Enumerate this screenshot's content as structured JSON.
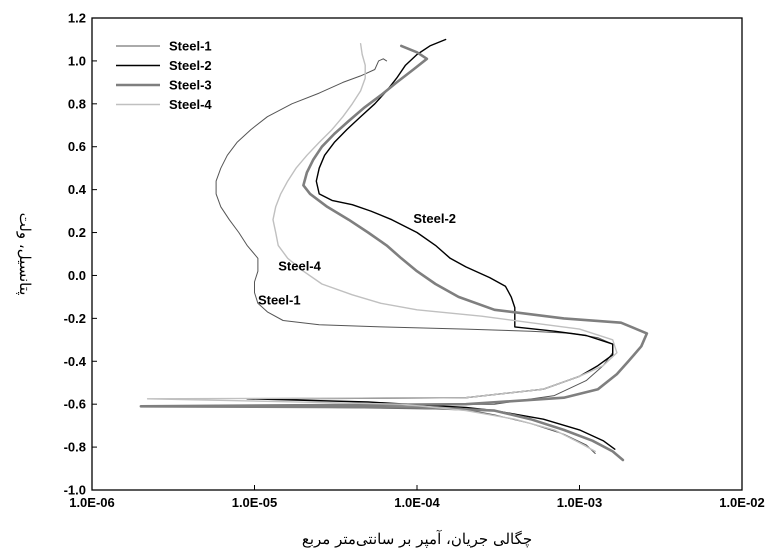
{
  "chart_data": {
    "type": "line",
    "xlabel": "چگالی جریان، آمپر بر سانتی‌متر مربع",
    "ylabel": "پتانسیل، ولت",
    "xscale": "log",
    "xlim": [
      1e-06,
      0.01
    ],
    "ylim": [
      -1.0,
      1.2
    ],
    "x_ticks": [
      1e-06,
      1e-05,
      0.0001,
      0.001,
      0.01
    ],
    "x_tick_labels": [
      "1.0E-06",
      "1.0E-05",
      "1.0E-04",
      "1.0E-03",
      "1.0E-02"
    ],
    "y_ticks": [
      -1.0,
      -0.8,
      -0.6,
      -0.4,
      -0.2,
      0.0,
      0.2,
      0.4,
      0.6,
      0.8,
      1.0,
      1.2
    ],
    "y_tick_labels": [
      "-1.0",
      "-0.8",
      "-0.6",
      "-0.4",
      "-0.2",
      "0.0",
      "0.2",
      "0.4",
      "0.6",
      "0.8",
      "1.0",
      "1.2"
    ],
    "grid": false,
    "legend_position": "top-left",
    "series": [
      {
        "name": "Steel-1",
        "color": "#555555",
        "points": [
          [
            0.00125,
            -0.83
          ],
          [
            0.0011,
            -0.79
          ],
          [
            0.0008,
            -0.74
          ],
          [
            0.0005,
            -0.69
          ],
          [
            0.0003,
            -0.65
          ],
          [
            0.0002,
            -0.625
          ],
          [
            2.5e-05,
            -0.615
          ],
          [
            2.4e-06,
            -0.61
          ],
          [
            0.0003,
            -0.6
          ],
          [
            0.0007,
            -0.56
          ],
          [
            0.0011,
            -0.49
          ],
          [
            0.0014,
            -0.42
          ],
          [
            0.0016,
            -0.36
          ],
          [
            0.0016,
            -0.32
          ],
          [
            0.0013,
            -0.29
          ],
          [
            0.0009,
            -0.27
          ],
          [
            0.0005,
            -0.26
          ],
          [
            0.0002,
            -0.25
          ],
          [
            6e-05,
            -0.24
          ],
          [
            2.5e-05,
            -0.23
          ],
          [
            1.5e-05,
            -0.21
          ],
          [
            1.2e-05,
            -0.17
          ],
          [
            1.05e-05,
            -0.13
          ],
          [
            1e-05,
            -0.08
          ],
          [
            1e-05,
            -0.03
          ],
          [
            1.05e-05,
            0.02
          ],
          [
            1.05e-05,
            0.08
          ],
          [
            9e-06,
            0.14
          ],
          [
            8e-06,
            0.2
          ],
          [
            7e-06,
            0.26
          ],
          [
            6.2e-06,
            0.32
          ],
          [
            5.8e-06,
            0.38
          ],
          [
            5.8e-06,
            0.44
          ],
          [
            6.2e-06,
            0.5
          ],
          [
            6.8e-06,
            0.56
          ],
          [
            7.8e-06,
            0.62
          ],
          [
            9.5e-06,
            0.68
          ],
          [
            1.2e-05,
            0.74
          ],
          [
            1.7e-05,
            0.8
          ],
          [
            2.5e-05,
            0.85
          ],
          [
            3.5e-05,
            0.9
          ],
          [
            4.5e-05,
            0.93
          ],
          [
            5.5e-05,
            0.96
          ],
          [
            5.8e-05,
            1.0
          ],
          [
            6.2e-05,
            1.01
          ],
          [
            6.5e-05,
            1.0
          ]
        ]
      },
      {
        "name": "Steel-2",
        "color": "#000000",
        "points": [
          [
            0.00165,
            -0.81
          ],
          [
            0.0014,
            -0.77
          ],
          [
            0.001,
            -0.72
          ],
          [
            0.0006,
            -0.67
          ],
          [
            0.0003,
            -0.63
          ],
          [
            0.0002,
            -0.615
          ],
          [
            5e-05,
            -0.59
          ],
          [
            9e-06,
            -0.575
          ],
          [
            0.0002,
            -0.57
          ],
          [
            0.0006,
            -0.53
          ],
          [
            0.001,
            -0.47
          ],
          [
            0.0013,
            -0.42
          ],
          [
            0.0016,
            -0.37
          ],
          [
            0.0016,
            -0.32
          ],
          [
            0.0011,
            -0.28
          ],
          [
            0.0007,
            -0.26
          ],
          [
            0.0004,
            -0.24
          ],
          [
            0.0004,
            -0.2
          ],
          [
            0.0004,
            -0.15
          ],
          [
            0.00038,
            -0.1
          ],
          [
            0.00035,
            -0.05
          ],
          [
            0.00028,
            -0.01
          ],
          [
            0.0002,
            0.04
          ],
          [
            0.00016,
            0.08
          ],
          [
            0.00013,
            0.14
          ],
          [
            0.0001,
            0.2
          ],
          [
            7e-05,
            0.26
          ],
          [
            5.2e-05,
            0.3
          ],
          [
            4e-05,
            0.33
          ],
          [
            3e-05,
            0.35
          ],
          [
            2.5e-05,
            0.38
          ],
          [
            2.4e-05,
            0.44
          ],
          [
            2.5e-05,
            0.5
          ],
          [
            2.7e-05,
            0.56
          ],
          [
            3.1e-05,
            0.62
          ],
          [
            3.7e-05,
            0.68
          ],
          [
            4.5e-05,
            0.74
          ],
          [
            5.5e-05,
            0.8
          ],
          [
            6.5e-05,
            0.86
          ],
          [
            7.5e-05,
            0.92
          ],
          [
            8.5e-05,
            0.98
          ],
          [
            0.0001,
            1.03
          ],
          [
            0.00012,
            1.07
          ],
          [
            0.00015,
            1.1
          ]
        ]
      },
      {
        "name": "Steel-3",
        "color": "#7f7f7f",
        "points": [
          [
            0.00185,
            -0.86
          ],
          [
            0.0016,
            -0.82
          ],
          [
            0.0012,
            -0.77
          ],
          [
            0.0008,
            -0.72
          ],
          [
            0.0005,
            -0.67
          ],
          [
            0.0003,
            -0.63
          ],
          [
            0.0001,
            -0.615
          ],
          [
            2e-06,
            -0.61
          ],
          [
            0.0002,
            -0.6
          ],
          [
            0.0008,
            -0.57
          ],
          [
            0.0013,
            -0.53
          ],
          [
            0.0017,
            -0.46
          ],
          [
            0.002,
            -0.4
          ],
          [
            0.0024,
            -0.33
          ],
          [
            0.0026,
            -0.27
          ],
          [
            0.0018,
            -0.22
          ],
          [
            0.0008,
            -0.2
          ],
          [
            0.0003,
            -0.16
          ],
          [
            0.00018,
            -0.1
          ],
          [
            0.00013,
            -0.04
          ],
          [
            0.0001,
            0.02
          ],
          [
            8e-05,
            0.08
          ],
          [
            6.5e-05,
            0.14
          ],
          [
            5e-05,
            0.2
          ],
          [
            3.8e-05,
            0.26
          ],
          [
            2.8e-05,
            0.32
          ],
          [
            2.2e-05,
            0.38
          ],
          [
            2e-05,
            0.42
          ],
          [
            2.1e-05,
            0.48
          ],
          [
            2.3e-05,
            0.54
          ],
          [
            2.6e-05,
            0.6
          ],
          [
            3.1e-05,
            0.66
          ],
          [
            3.8e-05,
            0.72
          ],
          [
            4.7e-05,
            0.78
          ],
          [
            6e-05,
            0.84
          ],
          [
            7.5e-05,
            0.9
          ],
          [
            9.5e-05,
            0.96
          ],
          [
            0.000115,
            1.01
          ],
          [
            0.0001,
            1.04
          ],
          [
            8e-05,
            1.07
          ]
        ]
      },
      {
        "name": "Steel-4",
        "color": "#c0c0c0",
        "points": [
          [
            0.00125,
            -0.82
          ],
          [
            0.001,
            -0.78
          ],
          [
            0.0007,
            -0.72
          ],
          [
            0.0004,
            -0.67
          ],
          [
            0.0002,
            -0.63
          ],
          [
            8e-05,
            -0.6
          ],
          [
            2.2e-06,
            -0.575
          ],
          [
            0.0002,
            -0.57
          ],
          [
            0.0006,
            -0.53
          ],
          [
            0.001,
            -0.47
          ],
          [
            0.0014,
            -0.42
          ],
          [
            0.0017,
            -0.36
          ],
          [
            0.0016,
            -0.3
          ],
          [
            0.001,
            -0.25
          ],
          [
            0.0005,
            -0.22
          ],
          [
            0.00025,
            -0.19
          ],
          [
            0.0001,
            -0.16
          ],
          [
            6e-05,
            -0.13
          ],
          [
            4e-05,
            -0.09
          ],
          [
            2.6e-05,
            -0.04
          ],
          [
            2e-05,
            0.02
          ],
          [
            1.6e-05,
            0.08
          ],
          [
            1.4e-05,
            0.14
          ],
          [
            1.35e-05,
            0.2
          ],
          [
            1.3e-05,
            0.26
          ],
          [
            1.35e-05,
            0.32
          ],
          [
            1.45e-05,
            0.38
          ],
          [
            1.6e-05,
            0.44
          ],
          [
            1.8e-05,
            0.5
          ],
          [
            2.1e-05,
            0.56
          ],
          [
            2.5e-05,
            0.62
          ],
          [
            3e-05,
            0.68
          ],
          [
            3.5e-05,
            0.74
          ],
          [
            4e-05,
            0.8
          ],
          [
            4.5e-05,
            0.86
          ],
          [
            4.8e-05,
            0.92
          ],
          [
            4.8e-05,
            0.98
          ],
          [
            4.6e-05,
            1.03
          ],
          [
            4.5e-05,
            1.08
          ]
        ]
      }
    ],
    "annotations": [
      {
        "text": "Steel-2",
        "x": 9.5e-05,
        "y": 0.265
      },
      {
        "text": "Steel-4",
        "x": 1.4e-05,
        "y": 0.045
      },
      {
        "text": "Steel-1",
        "x": 1.05e-05,
        "y": -0.115
      }
    ]
  }
}
